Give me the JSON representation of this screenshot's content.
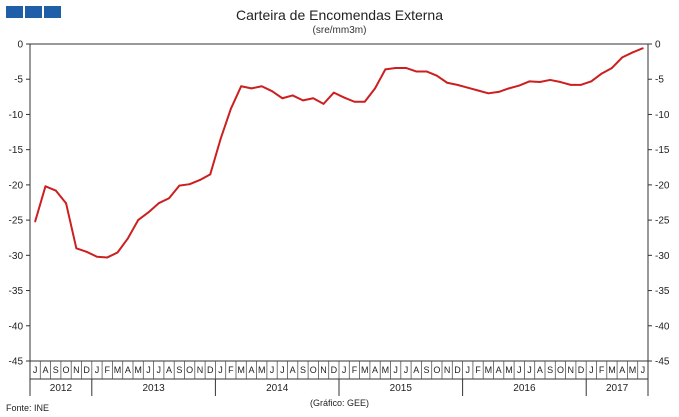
{
  "header": {
    "logo": "logo-squares",
    "title": "Carteira de Encomendas Externa",
    "subtitle": "(sre/mm3m)"
  },
  "footer": {
    "source": "Fonte: INE",
    "credit": "(Gráfico: GEE)"
  },
  "chart_data": {
    "type": "line",
    "title": "Carteira de Encomendas Externa",
    "subtitle": "(sre/mm3m)",
    "ylim": [
      -45,
      0
    ],
    "yticks": [
      0,
      -5,
      -10,
      -15,
      -20,
      -25,
      -30,
      -35,
      -40,
      -45
    ],
    "grid": false,
    "line_color": "#cc1f1f",
    "months": [
      "J",
      "A",
      "S",
      "O",
      "N",
      "D",
      "J",
      "F",
      "M",
      "A",
      "M",
      "J",
      "J",
      "A",
      "S",
      "O",
      "N",
      "D",
      "J",
      "F",
      "M",
      "A",
      "M",
      "J",
      "J",
      "A",
      "S",
      "O",
      "N",
      "D",
      "J",
      "F",
      "M",
      "A",
      "M",
      "J",
      "J",
      "A",
      "S",
      "O",
      "N",
      "D",
      "J",
      "F",
      "M",
      "A",
      "M",
      "J",
      "J",
      "A",
      "S",
      "O",
      "N",
      "D",
      "J",
      "F",
      "M",
      "A",
      "M",
      "J"
    ],
    "years": [
      {
        "label": "2012",
        "start": 0,
        "count": 6
      },
      {
        "label": "2013",
        "start": 6,
        "count": 12
      },
      {
        "label": "2014",
        "start": 18,
        "count": 12
      },
      {
        "label": "2015",
        "start": 30,
        "count": 12
      },
      {
        "label": "2016",
        "start": 42,
        "count": 12
      },
      {
        "label": "2017",
        "start": 54,
        "count": 6
      }
    ],
    "series": [
      {
        "values": [
          -25.2,
          -20.2,
          -20.8,
          -22.6,
          -29.0,
          -29.5,
          -30.2,
          -30.3,
          -29.6,
          -27.6,
          -25.0,
          -23.9,
          -22.6,
          -21.9,
          -20.1,
          -19.9,
          -19.3,
          -18.5,
          -13.5,
          -9.2,
          -6.0,
          -6.3,
          -6.0,
          -6.7,
          -7.7,
          -7.3,
          -8.0,
          -7.7,
          -8.5,
          -6.9,
          -7.6,
          -8.2,
          -8.2,
          -6.3,
          -3.6,
          -3.4,
          -3.4,
          -3.9,
          -3.9,
          -4.5,
          -5.5,
          -5.8,
          -6.2,
          -6.6,
          -7.0,
          -6.8,
          -6.3,
          -5.9,
          -5.3,
          -5.4,
          -5.1,
          -5.4,
          -5.8,
          -5.8,
          -5.3,
          -4.2,
          -3.4,
          -1.9,
          -1.2,
          -0.6
        ]
      }
    ]
  }
}
